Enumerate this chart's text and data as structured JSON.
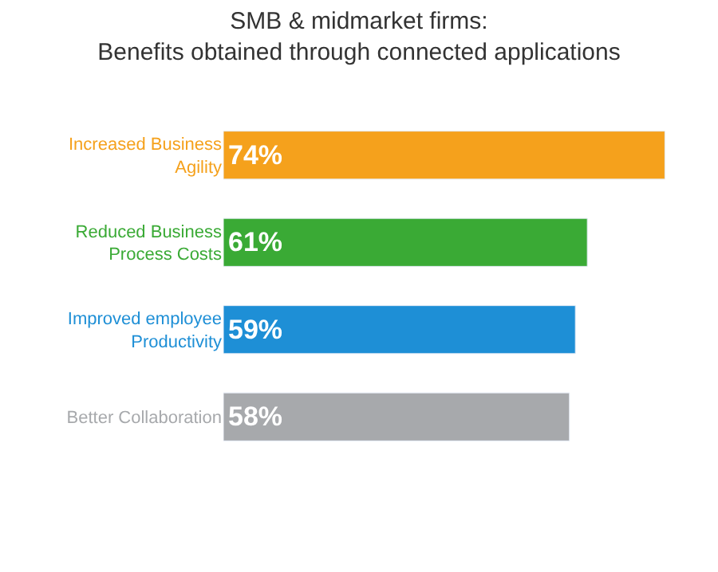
{
  "chart_data": {
    "type": "bar",
    "orientation": "horizontal",
    "title": "SMB & midmarket firms:\nBenefits obtained through connected applications",
    "categories": [
      "Increased Business Agility",
      "Reduced Business Process Costs",
      "Improved employee Productivity",
      "Better Collaboration"
    ],
    "values": [
      74,
      61,
      59,
      58
    ],
    "colors": [
      "#f5a11c",
      "#3aaa35",
      "#1e8fd6",
      "#a7a9ac"
    ],
    "value_labels": [
      "74%",
      "61%",
      "59%",
      "58%"
    ]
  }
}
